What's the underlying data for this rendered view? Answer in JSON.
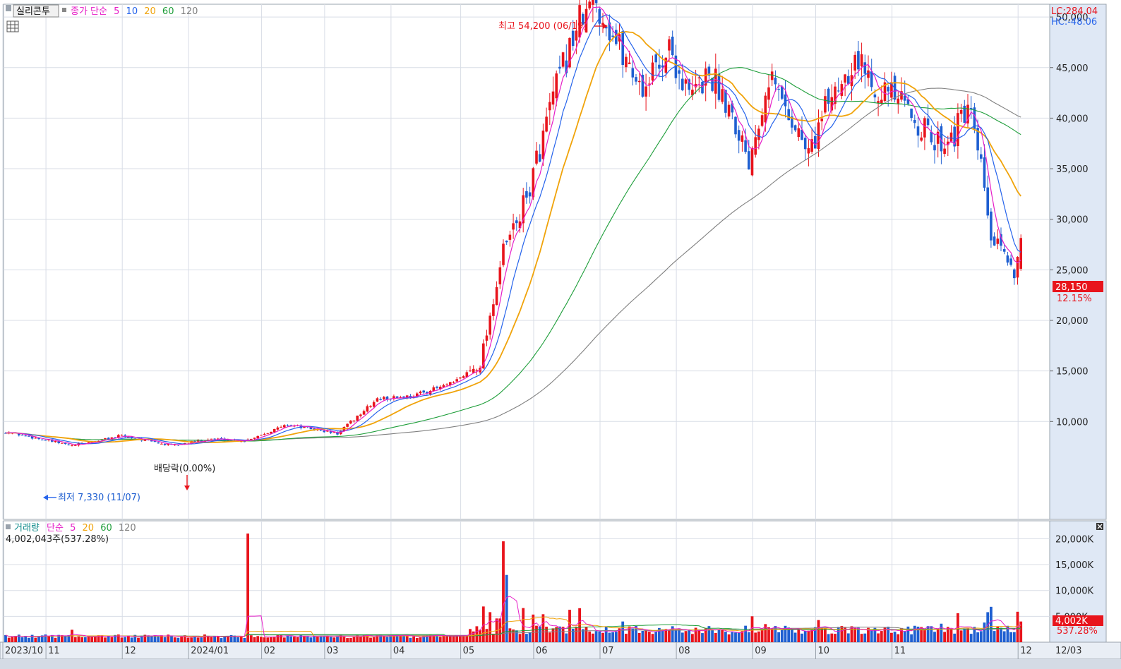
{
  "header": {
    "name": "실리콘투",
    "indicator_label": "종가 단순",
    "ma_periods": [
      "5",
      "10",
      "20",
      "60",
      "120"
    ],
    "lc": "LC:284.04",
    "hc": "HC:-48.06"
  },
  "colors": {
    "up": "#e8141c",
    "down": "#1f5fd1",
    "ma5": "#e61ec8",
    "ma10": "#2563eb",
    "ma20": "#f0a30a",
    "ma60": "#1e9e3a",
    "ma120": "#808080",
    "grid": "#d8dde6",
    "axis_bg": "#dfe8f5"
  },
  "annotations": {
    "high": "최고 54,200 (06/19)",
    "low": "최저 7,330 (11/07)",
    "dividend": "배당락(0.00%)"
  },
  "price_panel": {
    "y_ticks": [
      "10,000",
      "15,000",
      "20,000",
      "25,000",
      "30,000",
      "35,000",
      "40,000",
      "45,000",
      "50,000"
    ],
    "y_range": [
      5000,
      55000
    ],
    "last_price": "28,150",
    "last_change": "12.15%"
  },
  "volume_panel": {
    "label": "거래량",
    "indicator_label": "단순",
    "ma_periods": [
      "5",
      "20",
      "60",
      "120"
    ],
    "current": "4,002,043주(537.28%)",
    "y_ticks": [
      "5,000K",
      "10,000K",
      "15,000K",
      "20,000K"
    ],
    "last_volume": "4,002K",
    "last_ratio": "537.28%"
  },
  "x_axis": {
    "labels": [
      "2023/10",
      "11",
      "12",
      "2024/01",
      "02",
      "03",
      "04",
      "05",
      "06",
      "07",
      "08",
      "09",
      "10",
      "11",
      "12"
    ],
    "right_label": "12/03"
  },
  "chart_data": {
    "type": "candlestick",
    "anchors_close": [
      [
        0,
        9000
      ],
      [
        20,
        7600
      ],
      [
        35,
        8600
      ],
      [
        50,
        7600
      ],
      [
        62,
        8300
      ],
      [
        72,
        8100
      ],
      [
        85,
        9700
      ],
      [
        100,
        8800
      ],
      [
        112,
        12200
      ],
      [
        122,
        12500
      ],
      [
        135,
        13800
      ],
      [
        143,
        15800
      ],
      [
        150,
        26800
      ],
      [
        157,
        32000
      ],
      [
        165,
        42000
      ],
      [
        172,
        49000
      ],
      [
        178,
        51500
      ],
      [
        185,
        47000
      ],
      [
        192,
        43000
      ],
      [
        200,
        47000
      ],
      [
        206,
        42000
      ],
      [
        212,
        44500
      ],
      [
        218,
        41500
      ],
      [
        224,
        36000
      ],
      [
        230,
        44500
      ],
      [
        236,
        40500
      ],
      [
        242,
        36500
      ],
      [
        249,
        42500
      ],
      [
        256,
        46000
      ],
      [
        262,
        43500
      ],
      [
        268,
        42000
      ],
      [
        274,
        40000
      ],
      [
        280,
        37500
      ],
      [
        286,
        38500
      ],
      [
        290,
        41000
      ],
      [
        294,
        35000
      ],
      [
        297,
        28000
      ],
      [
        304,
        25000
      ],
      [
        306,
        28150
      ]
    ],
    "volume_spikes": [
      [
        20,
        2400
      ],
      [
        73,
        21000
      ],
      [
        150,
        19500
      ],
      [
        151,
        13000
      ]
    ]
  }
}
